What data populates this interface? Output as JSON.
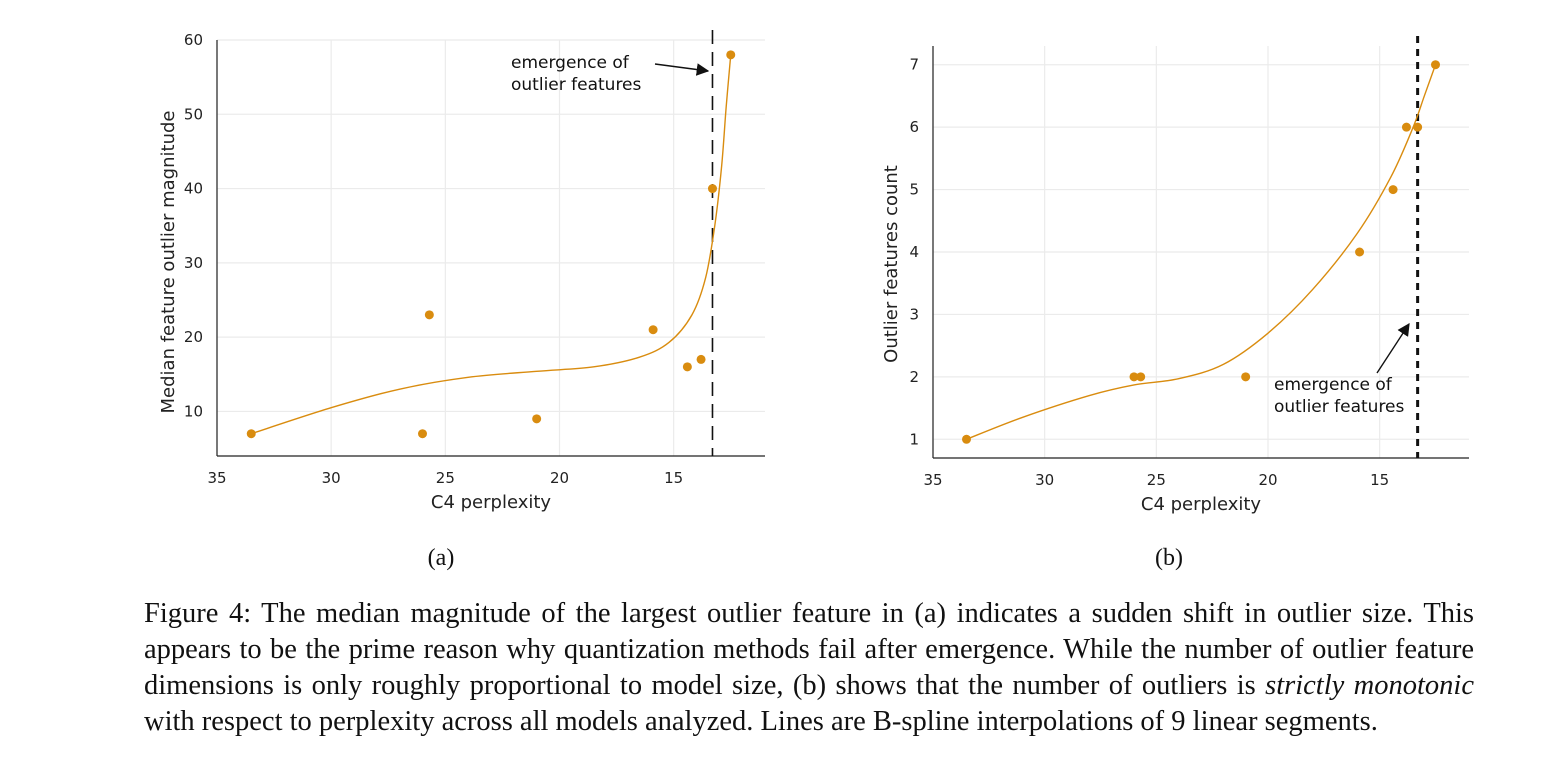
{
  "chart_data": [
    {
      "type": "scatter",
      "panel_label": "(a)",
      "xlabel": "C4 perplexity",
      "ylabel": "Median feature outlier magnitude",
      "xlim": [
        35,
        11
      ],
      "ylim": [
        4,
        60
      ],
      "xticks": [
        35,
        30,
        25,
        20,
        15
      ],
      "yticks": [
        10,
        20,
        30,
        40,
        50,
        60
      ],
      "grid": true,
      "color": "#d98c0f",
      "points": [
        {
          "x": 33.5,
          "y": 7
        },
        {
          "x": 26.0,
          "y": 7
        },
        {
          "x": 25.7,
          "y": 23
        },
        {
          "x": 21.0,
          "y": 9
        },
        {
          "x": 15.9,
          "y": 21
        },
        {
          "x": 14.4,
          "y": 16
        },
        {
          "x": 13.8,
          "y": 17
        },
        {
          "x": 13.3,
          "y": 40
        },
        {
          "x": 12.5,
          "y": 58
        }
      ],
      "spline": [
        {
          "x": 33.5,
          "y": 7
        },
        {
          "x": 30,
          "y": 10.5
        },
        {
          "x": 27,
          "y": 13
        },
        {
          "x": 24,
          "y": 14.6
        },
        {
          "x": 21,
          "y": 15.4
        },
        {
          "x": 18.5,
          "y": 16
        },
        {
          "x": 16.5,
          "y": 17.3
        },
        {
          "x": 15.2,
          "y": 19.3
        },
        {
          "x": 14.2,
          "y": 23
        },
        {
          "x": 13.6,
          "y": 28
        },
        {
          "x": 13.2,
          "y": 35
        },
        {
          "x": 12.9,
          "y": 43
        },
        {
          "x": 12.7,
          "y": 51
        },
        {
          "x": 12.5,
          "y": 58
        }
      ],
      "emergence_x": 13.3,
      "vline_style": "long-dash",
      "annotation": {
        "line1": "emergence of",
        "line2": "outlier features"
      }
    },
    {
      "type": "scatter",
      "panel_label": "(b)",
      "xlabel": "C4 perplexity",
      "ylabel": "Outlier features count",
      "xlim": [
        35,
        11
      ],
      "ylim": [
        0.7,
        7.3
      ],
      "xticks": [
        35,
        30,
        25,
        20,
        15
      ],
      "yticks": [
        1,
        2,
        3,
        4,
        5,
        6,
        7
      ],
      "grid": true,
      "color": "#d98c0f",
      "points": [
        {
          "x": 33.5,
          "y": 1
        },
        {
          "x": 26.0,
          "y": 2
        },
        {
          "x": 25.7,
          "y": 2
        },
        {
          "x": 21.0,
          "y": 2
        },
        {
          "x": 15.9,
          "y": 4
        },
        {
          "x": 14.4,
          "y": 5
        },
        {
          "x": 13.8,
          "y": 6
        },
        {
          "x": 13.3,
          "y": 6
        },
        {
          "x": 12.5,
          "y": 7
        }
      ],
      "spline": [
        {
          "x": 33.5,
          "y": 1
        },
        {
          "x": 31,
          "y": 1.35
        },
        {
          "x": 28,
          "y": 1.7
        },
        {
          "x": 26,
          "y": 1.87
        },
        {
          "x": 24,
          "y": 1.97
        },
        {
          "x": 22,
          "y": 2.2
        },
        {
          "x": 20,
          "y": 2.7
        },
        {
          "x": 18,
          "y": 3.4
        },
        {
          "x": 16,
          "y": 4.3
        },
        {
          "x": 14.5,
          "y": 5.2
        },
        {
          "x": 13.5,
          "y": 6.0
        },
        {
          "x": 13,
          "y": 6.5
        },
        {
          "x": 12.5,
          "y": 7
        }
      ],
      "emergence_x": 13.3,
      "vline_style": "short-dash",
      "annotation": {
        "line1": "emergence of",
        "line2": "outlier features"
      }
    }
  ],
  "caption": {
    "part1": "Figure 4: The median magnitude of the largest outlier feature in (a) indicates a sudden shift in outlier size. This appears to be the prime reason why quantization methods fail after emergence. While the number of outlier feature dimensions is only roughly proportional to model size, (b) shows that the number of outliers is ",
    "emph": "strictly monotonic",
    "part2": " with respect to perplexity across all models analyzed. Lines are B-spline interpolations of 9 linear segments."
  }
}
